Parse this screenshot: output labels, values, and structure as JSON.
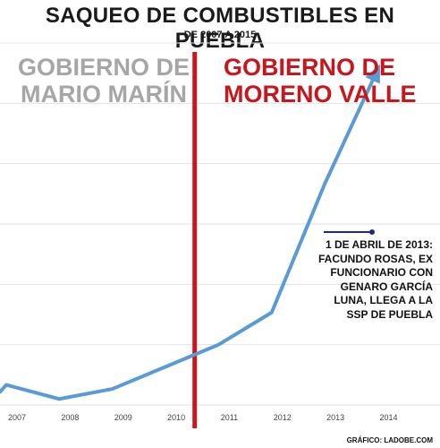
{
  "chart_data": {
    "type": "line",
    "title": "SAQUEO DE COMBUSTIBLES EN PUEBLA",
    "subtitle": "DE 2007 A 2015",
    "categories": [
      "2007",
      "2008",
      "2009",
      "2010",
      "2011",
      "2012",
      "2013",
      "2014"
    ],
    "series": [
      {
        "values": [
          1.0,
          0.3,
          0.8,
          1.9,
          3.0,
          4.6,
          11.0,
          16.7
        ]
      }
    ],
    "x": [
      2007,
      2008,
      2009,
      2010,
      2011,
      2012,
      2013,
      2014
    ],
    "xlim": [
      2007,
      2014.8
    ],
    "ylim": [
      0,
      18
    ],
    "grid": true,
    "line_color": "#5b9bd5",
    "divider_color": "#c8161d",
    "divider_year": 2010.55,
    "periods": {
      "left": {
        "label": "GOBIERNO DE MARIO MARÍN",
        "color": "#a6a6a6"
      },
      "right": {
        "label": "GOBIERNO DE MORENO VALLE",
        "color": "#c8161d"
      }
    },
    "annotation": {
      "text": "1 DE ABRIL DE 2013: FACUNDO ROSAS, EX FUNCIONARIO CON GENARO GARCÍA LUNA, LLEGA A LA SSP DE PUEBLA",
      "x": 2013.25,
      "y": 8.6,
      "marker_color": "#1f2a7a"
    },
    "credit": "GRÁFICO: LADOBE.COM"
  }
}
